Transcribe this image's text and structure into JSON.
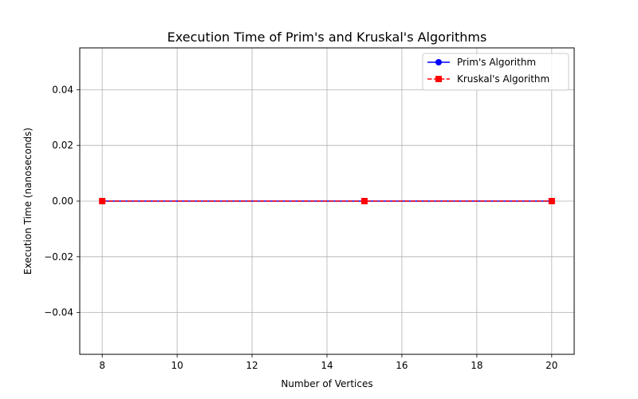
{
  "chart_data": {
    "type": "line",
    "title": "Execution Time of Prim's and Kruskal's Algorithms",
    "xlabel": "Number of Vertices",
    "ylabel": "Execution Time (nanoseconds)",
    "x": [
      8,
      15,
      20
    ],
    "xlim": [
      7.4,
      20.6
    ],
    "ylim": [
      -0.055,
      0.055
    ],
    "xticks": [
      8,
      10,
      12,
      14,
      16,
      18,
      20
    ],
    "yticks": [
      -0.04,
      -0.02,
      0.0,
      0.02,
      0.04
    ],
    "ytick_labels": [
      "−0.04",
      "−0.02",
      "0.00",
      "0.02",
      "0.04"
    ],
    "grid": true,
    "legend_position": "top-right",
    "series": [
      {
        "name": "Prim's Algorithm",
        "values": [
          0,
          0,
          0
        ],
        "color": "#0000ff",
        "marker": "circle",
        "linestyle": "solid"
      },
      {
        "name": "Kruskal's Algorithm",
        "values": [
          0,
          0,
          0
        ],
        "color": "#ff0000",
        "marker": "square",
        "linestyle": "dashed"
      }
    ]
  }
}
